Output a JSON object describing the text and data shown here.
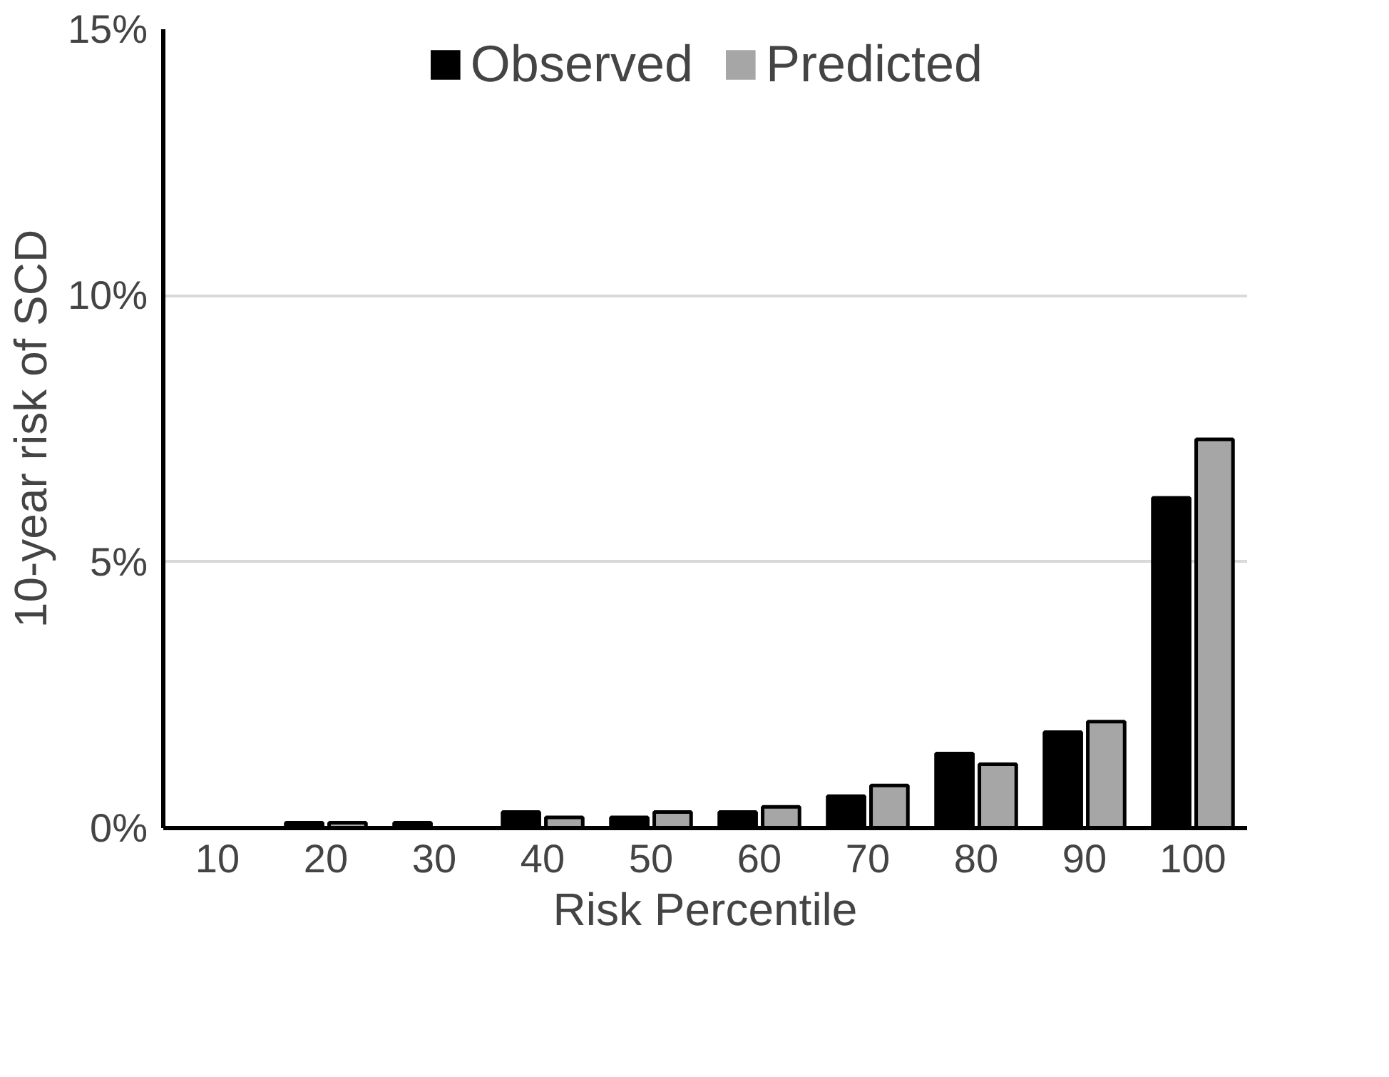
{
  "chart_data": {
    "type": "bar",
    "xlabel": "Risk Percentile",
    "ylabel": "10-year risk of SCD",
    "categories": [
      "10",
      "20",
      "30",
      "40",
      "50",
      "60",
      "70",
      "80",
      "90",
      "100"
    ],
    "series": [
      {
        "name": "Observed",
        "color": "#000000",
        "values": [
          0,
          0.1,
          0.1,
          0.3,
          0.2,
          0.3,
          0.6,
          1.4,
          1.8,
          6.2
        ]
      },
      {
        "name": "Predicted",
        "color": "#a6a6a6",
        "values": [
          0,
          0.1,
          0,
          0.2,
          0.3,
          0.4,
          0.8,
          1.2,
          2.0,
          7.3
        ]
      }
    ],
    "ylim": [
      0,
      15
    ],
    "yticks": [
      {
        "value": 0,
        "label": "0%"
      },
      {
        "value": 5,
        "label": "5%"
      },
      {
        "value": 10,
        "label": "10%"
      },
      {
        "value": 15,
        "label": "15%"
      }
    ],
    "grid": "y",
    "legend": "top"
  }
}
